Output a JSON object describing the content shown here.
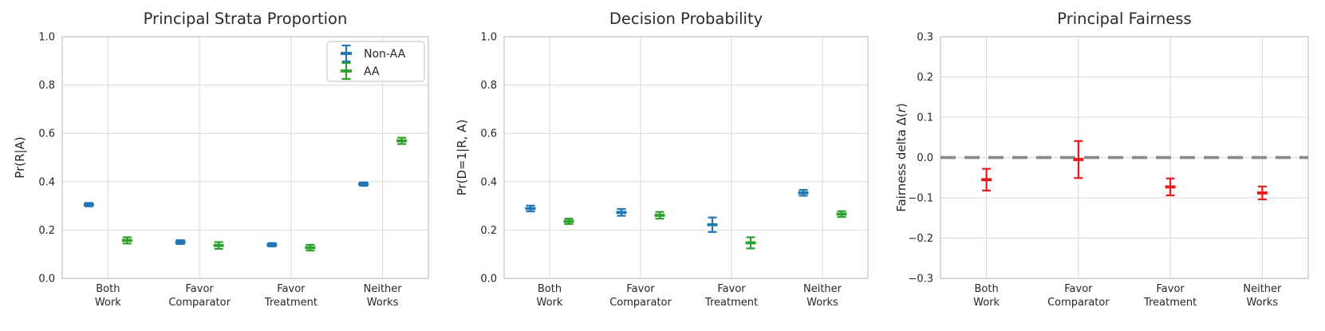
{
  "figure": {
    "background": "#ffffff",
    "text_color": "#262626",
    "grid_color": "#d9d9d9",
    "spine_color": "#c6c6c6"
  },
  "chart_data": [
    {
      "type": "errorbar",
      "title": "Principal Strata Proportion",
      "ylabel": "Pr(R|A)",
      "ylabel_parts": [
        {
          "text": "Pr(R|A)",
          "italic": false
        }
      ],
      "categories": [
        [
          "Both",
          "Work"
        ],
        [
          "Favor",
          "Comparator"
        ],
        [
          "Favor",
          "Treatment"
        ],
        [
          "Neither",
          "Works"
        ]
      ],
      "ylim": [
        0.0,
        1.0
      ],
      "yticks": [
        {
          "v": 0.0,
          "label": "0.0"
        },
        {
          "v": 0.2,
          "label": "0.2"
        },
        {
          "v": 0.4,
          "label": "0.4"
        },
        {
          "v": 0.6,
          "label": "0.6"
        },
        {
          "v": 0.8,
          "label": "0.8"
        },
        {
          "v": 1.0,
          "label": "1.0"
        }
      ],
      "grid": true,
      "legend": {
        "visible": true,
        "position": "upper right",
        "entries": [
          {
            "label": "Non-AA",
            "color": "#2077b4"
          },
          {
            "label": "AA",
            "color": "#2ca02c"
          }
        ]
      },
      "series": [
        {
          "name": "Non-AA",
          "color": "#2077b4",
          "dodge": -1,
          "values": [
            0.305,
            0.15,
            0.139,
            0.39
          ],
          "errors": [
            0.007,
            0.008,
            0.007,
            0.007
          ]
        },
        {
          "name": "AA",
          "color": "#2ca02c",
          "dodge": 1,
          "values": [
            0.157,
            0.136,
            0.127,
            0.569
          ],
          "errors": [
            0.013,
            0.014,
            0.012,
            0.013
          ]
        }
      ]
    },
    {
      "type": "errorbar",
      "title": "Decision Probability",
      "ylabel": "Pr(D=1|R, A)",
      "ylabel_parts": [
        {
          "text": "Pr(D=1|R, A)",
          "italic": false
        }
      ],
      "categories": [
        [
          "Both",
          "Work"
        ],
        [
          "Favor",
          "Comparator"
        ],
        [
          "Favor",
          "Treatment"
        ],
        [
          "Neither",
          "Works"
        ]
      ],
      "ylim": [
        0.0,
        1.0
      ],
      "yticks": [
        {
          "v": 0.0,
          "label": "0.0"
        },
        {
          "v": 0.2,
          "label": "0.2"
        },
        {
          "v": 0.4,
          "label": "0.4"
        },
        {
          "v": 0.6,
          "label": "0.6"
        },
        {
          "v": 0.8,
          "label": "0.8"
        },
        {
          "v": 1.0,
          "label": "1.0"
        }
      ],
      "grid": true,
      "legend": {
        "visible": false,
        "entries": []
      },
      "series": [
        {
          "name": "Non-AA",
          "color": "#2077b4",
          "dodge": -1,
          "values": [
            0.289,
            0.273,
            0.222,
            0.354
          ],
          "errors": [
            0.012,
            0.014,
            0.03,
            0.012
          ]
        },
        {
          "name": "AA",
          "color": "#2ca02c",
          "dodge": 1,
          "values": [
            0.236,
            0.261,
            0.147,
            0.266
          ],
          "errors": [
            0.011,
            0.014,
            0.023,
            0.012
          ]
        }
      ]
    },
    {
      "type": "errorbar",
      "title": "Principal Fairness",
      "ylabel": "Fairness delta Δ(r)",
      "ylabel_parts": [
        {
          "text": "Fairness delta Δ(",
          "italic": false
        },
        {
          "text": "r",
          "italic": true
        },
        {
          "text": ")",
          "italic": false
        }
      ],
      "categories": [
        [
          "Both",
          "Work"
        ],
        [
          "Favor",
          "Comparator"
        ],
        [
          "Favor",
          "Treatment"
        ],
        [
          "Neither",
          "Works"
        ]
      ],
      "ylim": [
        -0.3,
        0.3
      ],
      "yticks": [
        {
          "v": -0.3,
          "label": "−0.3"
        },
        {
          "v": -0.2,
          "label": "−0.2"
        },
        {
          "v": -0.1,
          "label": "−0.1"
        },
        {
          "v": 0.0,
          "label": "0.0"
        },
        {
          "v": 0.1,
          "label": "0.1"
        },
        {
          "v": 0.2,
          "label": "0.2"
        },
        {
          "v": 0.3,
          "label": "0.3"
        }
      ],
      "grid": true,
      "zero_line": {
        "value": 0.0,
        "color": "#8a8a8a",
        "dashed": true
      },
      "legend": {
        "visible": false,
        "entries": []
      },
      "series": [
        {
          "name": "Fairness delta",
          "color": "#e31a1c",
          "dodge": 0,
          "values": [
            -0.055,
            -0.005,
            -0.073,
            -0.088
          ],
          "errors": [
            0.027,
            0.046,
            0.021,
            0.016
          ]
        }
      ]
    }
  ]
}
